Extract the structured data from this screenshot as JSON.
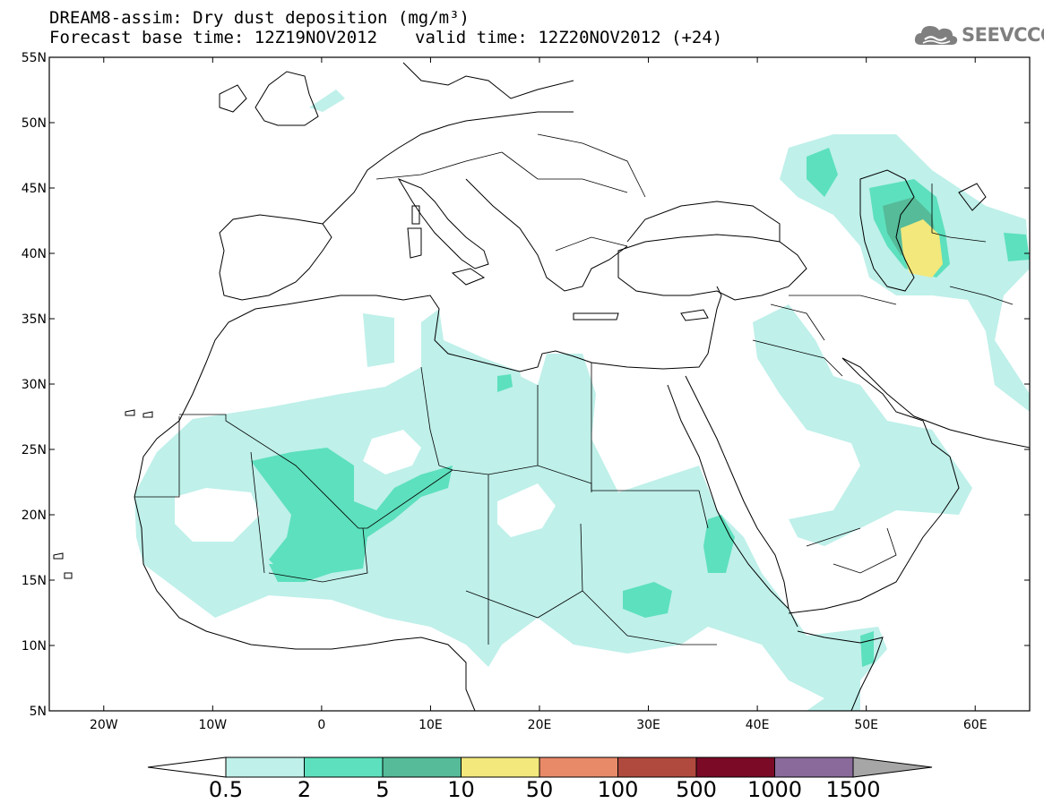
{
  "header": {
    "title_line1": "DREAM8-assim: Dry dust deposition (mg/m³)",
    "base_time_label": "Forecast base time: 12Z19NOV2012",
    "valid_time_label": "valid time: 12Z20NOV2012 (+24)",
    "logo_text": "SEEVCCC"
  },
  "map": {
    "lat_labels": [
      "55N",
      "50N",
      "45N",
      "40N",
      "35N",
      "30N",
      "25N",
      "20N",
      "15N",
      "10N",
      "5N"
    ],
    "lon_labels": [
      "20W",
      "10W",
      "0",
      "10E",
      "20E",
      "30E",
      "40E",
      "50E",
      "60E"
    ],
    "extent": {
      "lon_min": -25,
      "lon_max": 65,
      "lat_min": 5,
      "lat_max": 55
    }
  },
  "colorbar": {
    "labels": [
      "0.5",
      "2",
      "5",
      "10",
      "50",
      "100",
      "500",
      "1000",
      "1500"
    ],
    "colors": [
      "#bff0ea",
      "#5de0bd",
      "#55bb99",
      "#f2e87c",
      "#e88a68",
      "#b04a3e",
      "#7a0a26",
      "#8a6a9a",
      "#a6a6a6"
    ],
    "under_color": "#ffffff",
    "over_color": "#a6a6a6"
  }
}
